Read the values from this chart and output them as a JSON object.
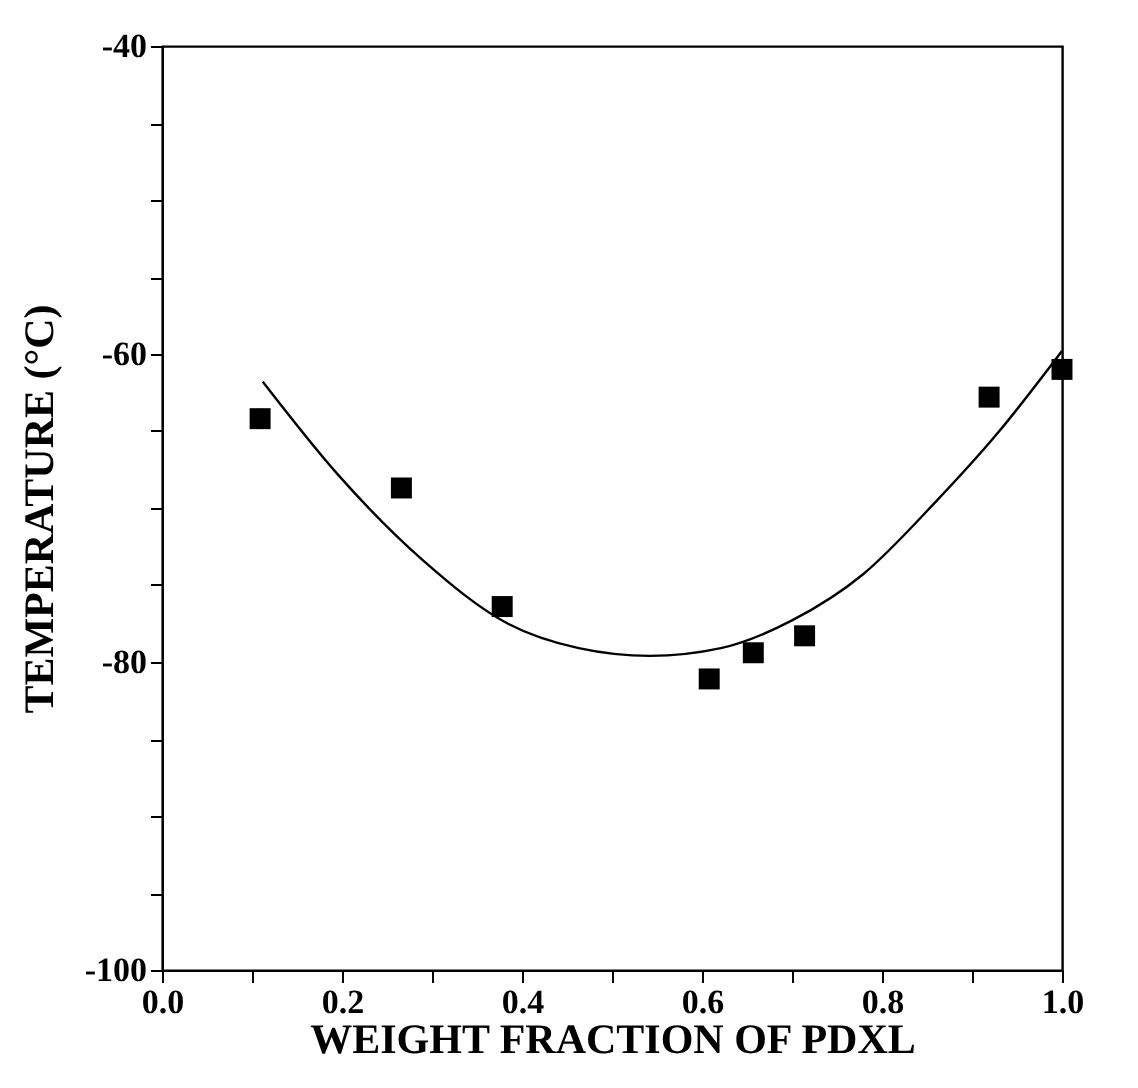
{
  "chart_data": {
    "type": "scatter",
    "xlabel": "WEIGHT FRACTION OF PDXL",
    "ylabel": "TEMPERATURE (°C)",
    "xlim": [
      0,
      1
    ],
    "ylim": [
      -100,
      -40
    ],
    "xticks": [
      {
        "value": 0,
        "label": "0.0"
      },
      {
        "value": 0.1,
        "label": null
      },
      {
        "value": 0.2,
        "label": "0.2"
      },
      {
        "value": 0.3,
        "label": null
      },
      {
        "value": 0.4,
        "label": "0.4"
      },
      {
        "value": 0.5,
        "label": null
      },
      {
        "value": 0.6,
        "label": "0.6"
      },
      {
        "value": 0.7,
        "label": null
      },
      {
        "value": 0.8,
        "label": "0.8"
      },
      {
        "value": 0.9,
        "label": null
      },
      {
        "value": 1,
        "label": "1.0"
      }
    ],
    "yticks": [
      -100,
      {
        "value": -95,
        "label": null
      },
      {
        "value": -90,
        "label": null
      },
      {
        "value": -85,
        "label": null
      },
      -80,
      {
        "value": -75,
        "label": null
      },
      {
        "value": -70,
        "label": null
      },
      {
        "value": -65,
        "label": null
      },
      -60,
      {
        "value": -55,
        "label": null
      },
      {
        "value": -50,
        "label": null
      },
      {
        "value": -45,
        "label": null
      },
      -40
    ],
    "grid": false,
    "series": [
      {
        "type": "scatter",
        "marker": "square",
        "color": "#000000",
        "x": [
          0.109,
          0.266,
          0.378,
          0.608,
          0.657,
          0.714,
          0.919,
          1.0
        ],
        "values": [
          -64.2,
          -68.7,
          -76.4,
          -81.1,
          -79.4,
          -78.3,
          -62.8,
          -61.0
        ]
      },
      {
        "type": "line",
        "color": "#000000",
        "x": [
          0.112,
          0.195,
          0.29,
          0.384,
          0.463,
          0.542,
          0.621,
          0.7,
          0.779,
          0.858,
          0.929,
          1.0
        ],
        "values": [
          -61.8,
          -67.8,
          -73.4,
          -77.5,
          -79.1,
          -79.6,
          -79.1,
          -77.3,
          -74.3,
          -69.7,
          -65.1,
          -59.8
        ]
      }
    ]
  }
}
